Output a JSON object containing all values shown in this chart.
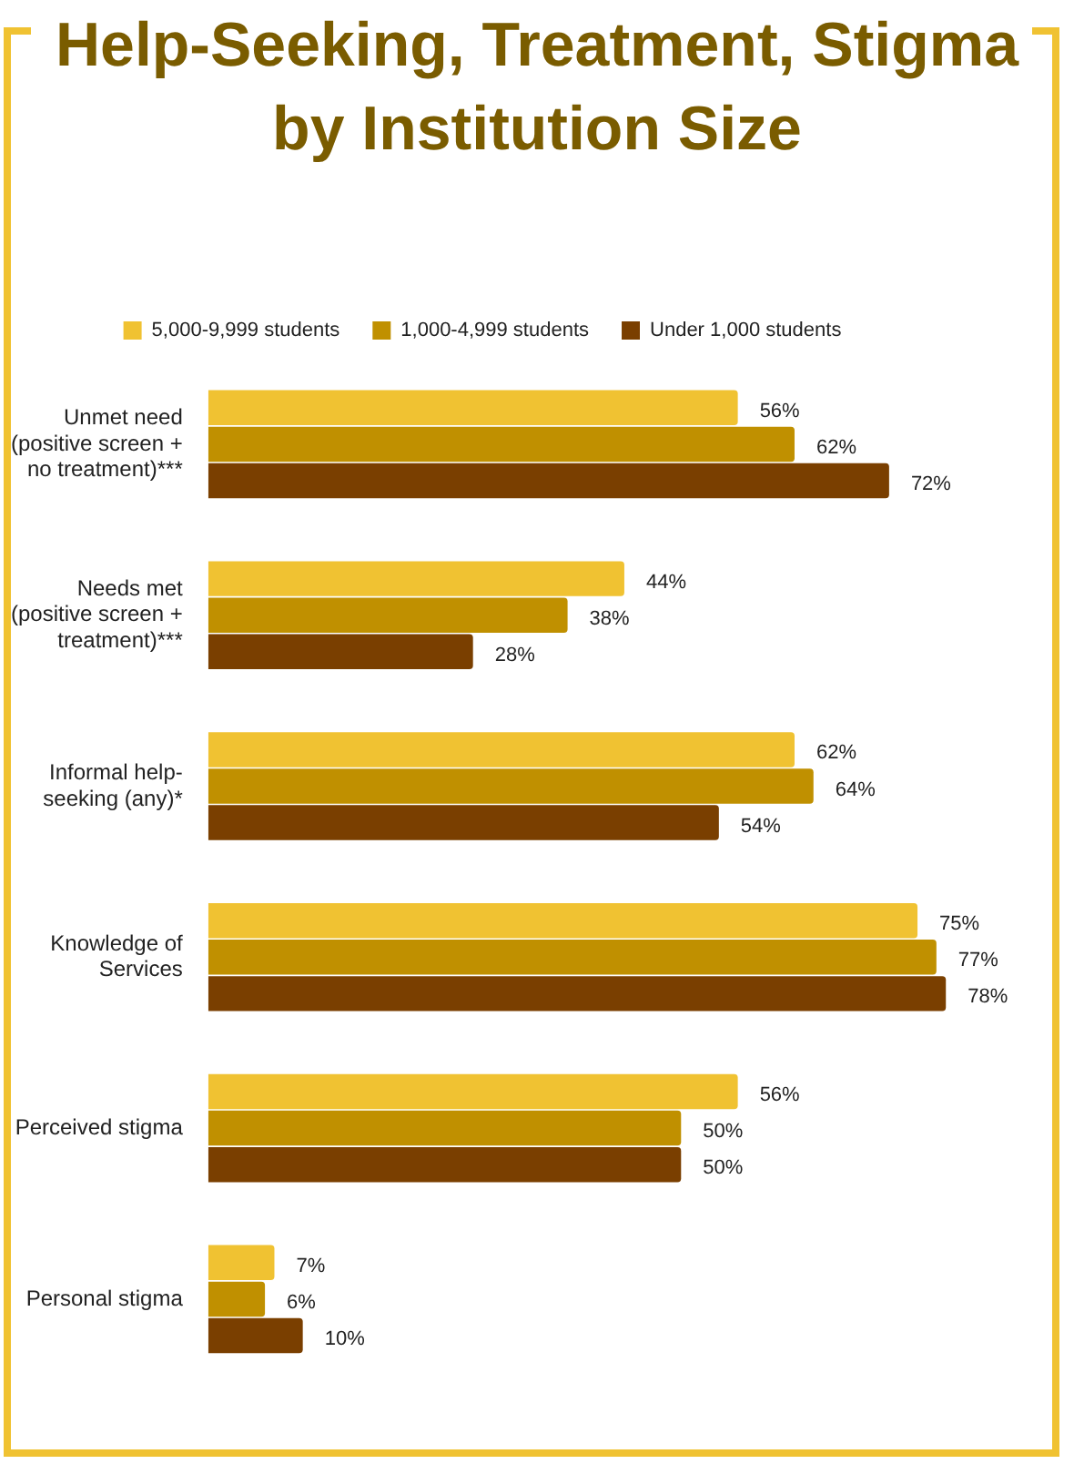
{
  "chart_data": {
    "type": "bar",
    "orientation": "horizontal",
    "title": "Help-Seeking, Treatment, Stigma by Institution Size",
    "categories": [
      "Unmet need\n(positive screen +\nno treatment)***",
      "Needs met\n(positive screen +\ntreatment)***",
      "Informal help-\nseeking (any)*",
      "Knowledge of\nServices",
      "Perceived stigma",
      "Personal stigma"
    ],
    "series": [
      {
        "name": "5,000-9,999 students",
        "color": "#f0c232",
        "values": [
          56,
          44,
          62,
          75,
          56,
          7
        ],
        "value_labels": [
          "56%",
          "44%",
          "62%",
          "75%",
          "56%",
          "7%"
        ]
      },
      {
        "name": "1,000-4,999 students",
        "color": "#c09000",
        "values": [
          62,
          38,
          64,
          77,
          50,
          6
        ],
        "value_labels": [
          "62%",
          "38%",
          "64%",
          "77%",
          "50%",
          "6%"
        ]
      },
      {
        "name": "Under 1,000 students",
        "color": "#7a3f00",
        "values": [
          72,
          28,
          54,
          78,
          50,
          10
        ],
        "value_labels": [
          "72%",
          "28%",
          "54%",
          "78%",
          "50%",
          "10%"
        ]
      }
    ],
    "legend": "top"
  }
}
